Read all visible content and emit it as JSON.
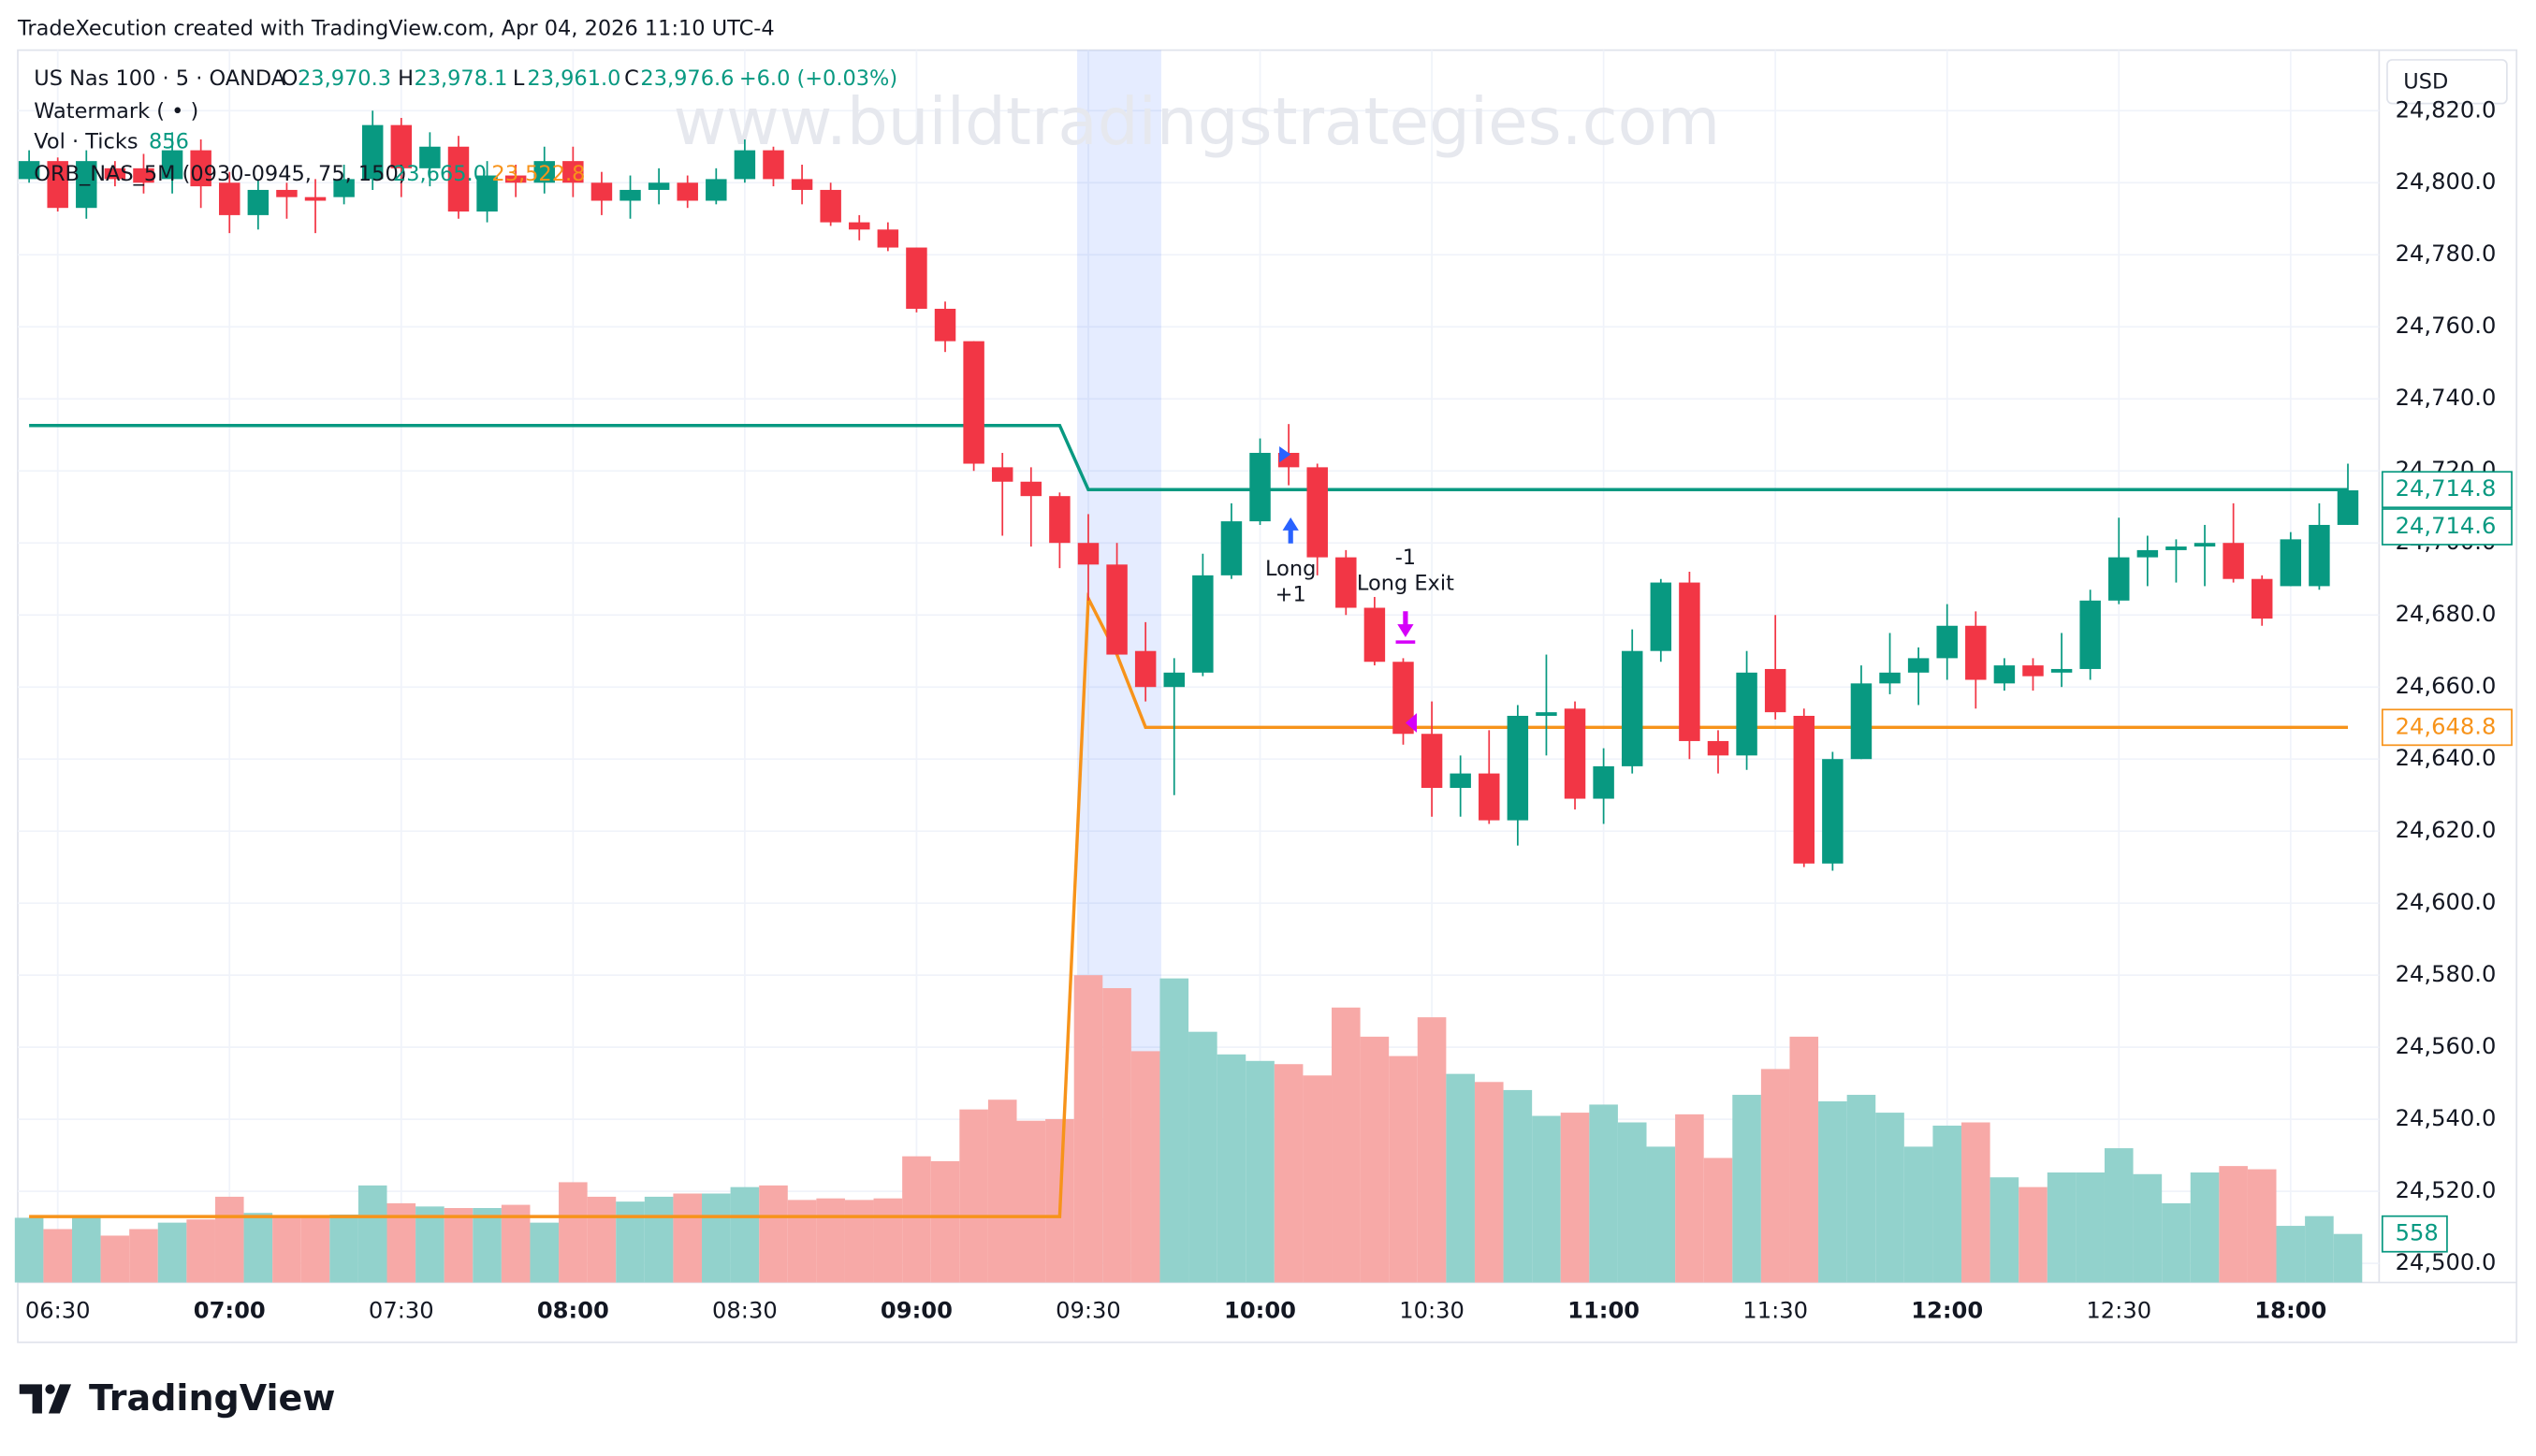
{
  "header": {
    "caption": "TradeXecution created with TradingView.com, Apr 04, 2026 11:10 UTC-4",
    "logo": "TradingView"
  },
  "chart_data": {
    "type": "candlestick",
    "watermark": "www.buildtradingstrategies.com",
    "legend": {
      "symbol": "US Nas 100 · 5 · OANDA",
      "ohlc": [
        {
          "key": "O",
          "value": "23,970.3"
        },
        {
          "key": "H",
          "value": "23,978.1"
        },
        {
          "key": "L",
          "value": "23,961.0"
        },
        {
          "key": "C",
          "value": "23,976.6"
        }
      ],
      "change": "+6.0 (+0.03%)",
      "indicators": [
        {
          "name": "Watermark ( • )"
        },
        {
          "name": "Vol · Ticks",
          "values": [
            "856"
          ]
        },
        {
          "name": "ORB_NAS_5M (0930-0945, 75, 150)",
          "values": [
            "23,665.0",
            "23,522.8"
          ]
        }
      ]
    },
    "currency": "USD",
    "categories": [
      "",
      "06:30",
      null,
      null,
      null,
      null,
      null,
      "07:00",
      null,
      null,
      null,
      null,
      null,
      "07:30",
      null,
      null,
      null,
      null,
      null,
      "08:00",
      null,
      null,
      null,
      null,
      null,
      "08:30",
      null,
      null,
      null,
      null,
      null,
      "09:00",
      null,
      null,
      null,
      null,
      null,
      "09:30",
      null,
      null,
      null,
      null,
      null,
      "10:00",
      null,
      null,
      null,
      null,
      null,
      "10:30",
      null,
      null,
      null,
      null,
      null,
      "11:00",
      null,
      null,
      null,
      null,
      null,
      "11:30",
      null,
      null,
      null,
      null,
      null,
      "12:00",
      null,
      null,
      null,
      null,
      null,
      "12:30",
      null,
      null,
      null,
      null,
      null,
      "18:00",
      null,
      null
    ],
    "open": [
      24801,
      24806,
      24793,
      24804,
      24804,
      24801,
      24809,
      24800,
      24791,
      24798,
      24796,
      24796,
      24801,
      24816,
      24804,
      24810,
      24792,
      24802,
      24800,
      24806,
      24800,
      24795,
      24798,
      24800,
      24795,
      24801,
      24809,
      24801,
      24798,
      24789,
      24787,
      24782,
      24765,
      24756,
      24721,
      24717,
      24713,
      24700,
      24694,
      24670,
      24660,
      24664,
      24691,
      24706,
      24725,
      24721,
      24696,
      24682,
      24667,
      24647,
      24632,
      24636,
      24623,
      24652,
      24654,
      24629,
      24638,
      24670,
      24689,
      24645,
      24641,
      24665,
      24652,
      24611,
      24640,
      24661,
      24664,
      24668,
      24677,
      24661,
      24666,
      24664,
      24665,
      24684,
      24696,
      24698,
      24699,
      24700,
      24690,
      24688,
      24688,
      24705
    ],
    "high": [
      24809,
      24807,
      24809,
      24806,
      24808,
      24814,
      24812,
      24803,
      24801,
      24800,
      24801,
      24805,
      24820,
      24818,
      24814,
      24813,
      24806,
      24805,
      24810,
      24810,
      24803,
      24802,
      24804,
      24802,
      24804,
      24812,
      24810,
      24805,
      24800,
      24791,
      24789,
      24782,
      24767,
      24756,
      24725,
      24721,
      24714,
      24708,
      24700,
      24678,
      24668,
      24697,
      24711,
      24729,
      24733,
      24722,
      24698,
      24685,
      24668,
      24656,
      24641,
      24648,
      24655,
      24669,
      24656,
      24643,
      24676,
      24690,
      24692,
      24648,
      24670,
      24680,
      24654,
      24642,
      24666,
      24675,
      24671,
      24683,
      24681,
      24668,
      24668,
      24675,
      24687,
      24707,
      24702,
      24701,
      24705,
      24711,
      24691,
      24703,
      24711,
      24722
    ],
    "low": [
      24800,
      24792,
      24790,
      24799,
      24797,
      24797,
      24793,
      24786,
      24787,
      24790,
      24786,
      24794,
      24798,
      24796,
      24799,
      24790,
      24789,
      24796,
      24797,
      24796,
      24791,
      24790,
      24794,
      24793,
      24794,
      24800,
      24799,
      24794,
      24788,
      24784,
      24781,
      24764,
      24753,
      24720,
      24702,
      24699,
      24693,
      24684,
      24669,
      24656,
      24630,
      24663,
      24690,
      24705,
      24716,
      24691,
      24680,
      24666,
      24644,
      24624,
      24624,
      24622,
      24616,
      24641,
      24626,
      24622,
      24636,
      24667,
      24640,
      24636,
      24637,
      24651,
      24610,
      24609,
      24640,
      24658,
      24655,
      24662,
      24654,
      24659,
      24659,
      24660,
      24662,
      24683,
      24688,
      24689,
      24688,
      24689,
      24677,
      24688,
      24687,
      24705
    ],
    "close": [
      24806,
      24793,
      24806,
      24801,
      24800,
      24809,
      24799,
      24791,
      24798,
      24796,
      24795,
      24801,
      24816,
      24804,
      24810,
      24792,
      24802,
      24800,
      24806,
      24800,
      24795,
      24798,
      24800,
      24795,
      24801,
      24809,
      24801,
      24798,
      24789,
      24787,
      24782,
      24765,
      24756,
      24722,
      24717,
      24713,
      24700,
      24694,
      24669,
      24660,
      24664,
      24691,
      24706,
      24725,
      24721,
      24696,
      24682,
      24667,
      24647,
      24632,
      24636,
      24623,
      24652,
      24653,
      24629,
      24638,
      24670,
      24689,
      24645,
      24641,
      24664,
      24653,
      24611,
      24640,
      24661,
      24664,
      24668,
      24677,
      24662,
      24666,
      24663,
      24665,
      24684,
      24696,
      24698,
      24699,
      24700,
      24690,
      24679,
      24701,
      24705,
      24714.6
    ],
    "volume": [
      744,
      614,
      744,
      539,
      614,
      688,
      725,
      986,
      800,
      763,
      763,
      781,
      1116,
      911,
      874,
      856,
      856,
      893,
      688,
      1153,
      986,
      930,
      986,
      1023,
      1023,
      1097,
      1116,
      949,
      967,
      949,
      967,
      1451,
      1395,
      1990,
      2102,
      1860,
      1879,
      3534,
      3385,
      2660,
      3497,
      2883,
      2623,
      2548,
      2511,
      2381,
      3162,
      2827,
      2604,
      3050,
      2399,
      2306,
      2213,
      1916,
      1953,
      2046,
      1841,
      1562,
      1934,
      1432,
      2158,
      2455,
      2827,
      2083,
      2158,
      1953,
      1562,
      1804,
      1841,
      1209,
      1097,
      1265,
      1265,
      1544,
      1246,
      911,
      1265,
      1339,
      1302,
      651,
      763,
      558
    ],
    "up_color": "#089981",
    "down_color": "#f23645",
    "volume_up_color": "#92d2cc",
    "volume_down_color": "#f7a9a7",
    "lines": [
      {
        "color": "#089981",
        "values": [
          24732.6,
          24732.6,
          24732.6,
          24732.6,
          24732.6,
          24732.6,
          24732.6,
          24732.6,
          24732.6,
          24732.6,
          24732.6,
          24732.6,
          24732.6,
          24732.6,
          24732.6,
          24732.6,
          24732.6,
          24732.6,
          24732.6,
          24732.6,
          24732.6,
          24732.6,
          24732.6,
          24732.6,
          24732.6,
          24732.6,
          24732.6,
          24732.6,
          24732.6,
          24732.6,
          24732.6,
          24732.6,
          24732.6,
          24732.6,
          24732.6,
          24732.6,
          24732.6,
          24714.8,
          24714.8,
          24714.8,
          24714.8,
          24714.8,
          24714.8,
          24714.8,
          24714.8,
          24714.8,
          24714.8,
          24714.8,
          24714.8,
          24714.8,
          24714.8,
          24714.8,
          24714.8,
          24714.8,
          24714.8,
          24714.8,
          24714.8,
          24714.8,
          24714.8,
          24714.8,
          24714.8,
          24714.8,
          24714.8,
          24714.8,
          24714.8,
          24714.8,
          24714.8,
          24714.8,
          24714.8,
          24714.8,
          24714.8,
          24714.8,
          24714.8,
          24714.8,
          24714.8,
          24714.8,
          24714.8,
          24714.8,
          24714.8,
          24714.8,
          24714.8,
          24714.8
        ]
      },
      {
        "color": "#f7931a",
        "values": [
          24513,
          24513,
          24513,
          24513,
          24513,
          24513,
          24513,
          24513,
          24513,
          24513,
          24513,
          24513,
          24513,
          24513,
          24513,
          24513,
          24513,
          24513,
          24513,
          24513,
          24513,
          24513,
          24513,
          24513,
          24513,
          24513,
          24513,
          24513,
          24513,
          24513,
          24513,
          24513,
          24513,
          24513,
          24513,
          24513,
          24513,
          24684.6,
          24669,
          24648.8,
          24648.8,
          24648.8,
          24648.8,
          24648.8,
          24648.8,
          24648.8,
          24648.8,
          24648.8,
          24648.8,
          24648.8,
          24648.8,
          24648.8,
          24648.8,
          24648.8,
          24648.8,
          24648.8,
          24648.8,
          24648.8,
          24648.8,
          24648.8,
          24648.8,
          24648.8,
          24648.8,
          24648.8,
          24648.8,
          24648.8,
          24648.8,
          24648.8,
          24648.8,
          24648.8,
          24648.8,
          24648.8,
          24648.8,
          24648.8,
          24648.8,
          24648.8,
          24648.8,
          24648.8,
          24648.8,
          24648.8,
          24648.8,
          24648.8
        ]
      }
    ],
    "price_labels": [
      {
        "value": 24714.8,
        "label": "24,714.8",
        "color": "#089981"
      },
      {
        "value": 24714.6,
        "label": "24,714.6",
        "color": "#089981"
      },
      {
        "value": 24648.8,
        "label": "24,648.8",
        "color": "#f7931a"
      }
    ],
    "annotations": [
      {
        "lines": [
          "Long",
          "+1"
        ]
      },
      {
        "lines": [
          "-1",
          "Long Exit"
        ]
      }
    ],
    "ylim": [
      24494.7,
      24836.8
    ],
    "yticks": [
      {
        "value": 24500,
        "label": "24,500.0"
      },
      {
        "value": 24520,
        "label": "24,520.0"
      },
      {
        "value": 24540,
        "label": "24,540.0"
      },
      {
        "value": 24560,
        "label": "24,560.0"
      },
      {
        "value": 24580,
        "label": "24,580.0"
      },
      {
        "value": 24600,
        "label": "24,600.0"
      },
      {
        "value": 24620,
        "label": "24,620.0"
      },
      {
        "value": 24640,
        "label": "24,640.0"
      },
      {
        "value": 24660,
        "label": "24,660.0"
      },
      {
        "value": 24680,
        "label": "24,680.0"
      },
      {
        "value": 24700,
        "label": "24,700.0"
      },
      {
        "value": 24720,
        "label": "24,720.0"
      },
      {
        "value": 24740,
        "label": "24,740.0"
      },
      {
        "value": 24760,
        "label": "24,760.0"
      },
      {
        "value": 24780,
        "label": "24,780.0"
      },
      {
        "value": 24800,
        "label": "24,800.0"
      },
      {
        "value": 24820,
        "label": "24,820.0"
      }
    ],
    "grid": true
  }
}
